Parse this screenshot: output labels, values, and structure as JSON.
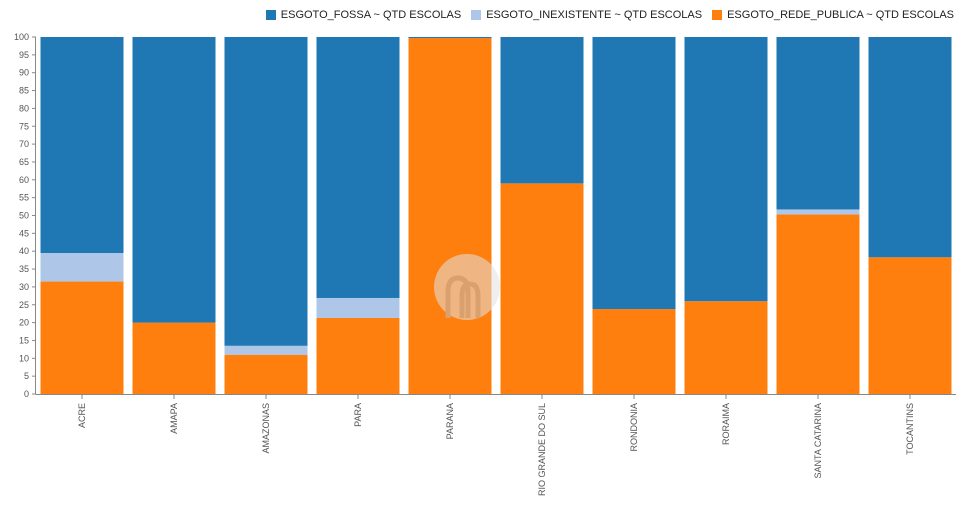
{
  "chart_data": {
    "type": "bar",
    "stacked": true,
    "categories": [
      "ACRE",
      "AMAPA",
      "AMAZONAS",
      "PARA",
      "PARANA",
      "RIO GRANDE DO SUL",
      "RONDONIA",
      "RORAIMA",
      "SANTA CATARINA",
      "TOCANTINS"
    ],
    "series": [
      {
        "name": "ESGOTO_REDE_PUBLICA ~ QTD ESCOLAS",
        "color": "#ff7f0e",
        "values": [
          31.5,
          20,
          11,
          21.3,
          99.7,
          59,
          23.8,
          26,
          50.3,
          38.3
        ]
      },
      {
        "name": "ESGOTO_INEXISTENTE ~ QTD ESCOLAS",
        "color": "#aec7e8",
        "values": [
          8,
          0,
          2.5,
          5.6,
          0,
          0,
          0,
          0,
          1.4,
          0
        ]
      },
      {
        "name": "ESGOTO_FOSSA ~ QTD ESCOLAS",
        "color": "#1f77b4",
        "values": [
          60.5,
          80,
          86.5,
          73.1,
          0.3,
          41,
          76.2,
          74,
          48.3,
          61.7
        ]
      }
    ],
    "legend_order": [
      {
        "name": "ESGOTO_FOSSA ~ QTD ESCOLAS",
        "color": "#1f77b4"
      },
      {
        "name": "ESGOTO_INEXISTENTE ~ QTD ESCOLAS",
        "color": "#aec7e8"
      },
      {
        "name": "ESGOTO_REDE_PUBLICA ~ QTD ESCOLAS",
        "color": "#ff7f0e"
      }
    ],
    "ylim": [
      0,
      100
    ],
    "yticks": [
      0,
      5,
      10,
      15,
      20,
      25,
      30,
      35,
      40,
      45,
      50,
      55,
      60,
      65,
      70,
      75,
      80,
      85,
      90,
      95,
      100
    ],
    "legend_position": "top-right",
    "grid": false
  }
}
